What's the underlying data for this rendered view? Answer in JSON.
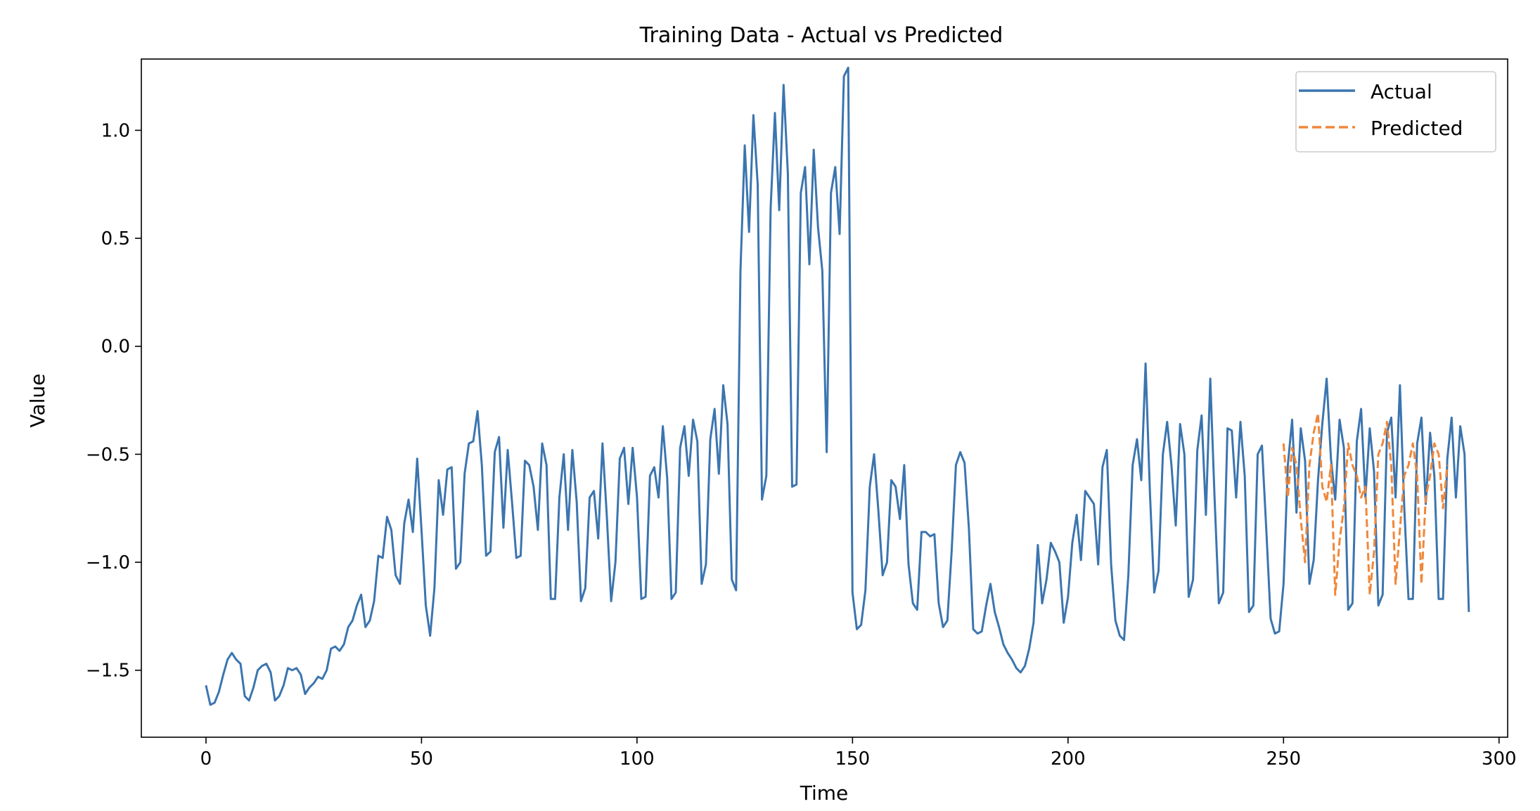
{
  "chart_data": {
    "type": "line",
    "title": "Training Data - Actual vs Predicted",
    "xlabel": "Time",
    "ylabel": "Value",
    "xlim": [
      -15,
      302
    ],
    "ylim": [
      -1.81,
      1.33
    ],
    "xticks": [
      0,
      50,
      100,
      150,
      200,
      250,
      300
    ],
    "xtick_labels": [
      "0",
      "50",
      "100",
      "150",
      "200",
      "250",
      "300"
    ],
    "yticks": [
      1.0,
      0.5,
      0.0,
      -0.5,
      -1.0,
      -1.5
    ],
    "ytick_labels": [
      "1.0",
      "0.5",
      "0.0",
      "−0.5",
      "−1.0",
      "−1.5"
    ],
    "grid": false,
    "legend": {
      "position": "top-right"
    },
    "series": [
      {
        "name": "Actual",
        "color": "#3b75af",
        "style": "solid",
        "x_start": 0,
        "values": [
          -1.57,
          -1.66,
          -1.65,
          -1.6,
          -1.52,
          -1.45,
          -1.42,
          -1.45,
          -1.47,
          -1.62,
          -1.64,
          -1.58,
          -1.5,
          -1.48,
          -1.47,
          -1.51,
          -1.64,
          -1.62,
          -1.57,
          -1.49,
          -1.5,
          -1.49,
          -1.52,
          -1.61,
          -1.58,
          -1.56,
          -1.53,
          -1.54,
          -1.5,
          -1.4,
          -1.39,
          -1.41,
          -1.38,
          -1.3,
          -1.27,
          -1.2,
          -1.15,
          -1.3,
          -1.27,
          -1.18,
          -0.97,
          -0.98,
          -0.79,
          -0.85,
          -1.06,
          -1.1,
          -0.82,
          -0.71,
          -0.86,
          -0.52,
          -0.85,
          -1.2,
          -1.34,
          -1.12,
          -0.62,
          -0.78,
          -0.57,
          -0.56,
          -1.03,
          -1.0,
          -0.59,
          -0.45,
          -0.44,
          -0.3,
          -0.55,
          -0.97,
          -0.95,
          -0.49,
          -0.42,
          -0.84,
          -0.48,
          -0.72,
          -0.98,
          -0.97,
          -0.53,
          -0.55,
          -0.65,
          -0.85,
          -0.45,
          -0.55,
          -1.17,
          -1.17,
          -0.7,
          -0.5,
          -0.85,
          -0.48,
          -0.72,
          -1.18,
          -1.12,
          -0.7,
          -0.67,
          -0.89,
          -0.45,
          -0.79,
          -1.18,
          -1.0,
          -0.52,
          -0.47,
          -0.73,
          -0.47,
          -0.7,
          -1.17,
          -1.16,
          -0.6,
          -0.56,
          -0.7,
          -0.37,
          -0.61,
          -1.17,
          -1.14,
          -0.47,
          -0.37,
          -0.6,
          -0.34,
          -0.44,
          -1.1,
          -1.01,
          -0.43,
          -0.29,
          -0.59,
          -0.18,
          -0.36,
          -1.08,
          -1.13,
          0.35,
          0.93,
          0.53,
          1.07,
          0.75,
          -0.71,
          -0.6,
          0.64,
          1.08,
          0.63,
          1.21,
          0.8,
          -0.65,
          -0.64,
          0.71,
          0.83,
          0.38,
          0.91,
          0.55,
          0.35,
          -0.49,
          0.71,
          0.83,
          0.52,
          1.25,
          1.29,
          -1.14,
          -1.31,
          -1.29,
          -1.13,
          -0.65,
          -0.5,
          -0.76,
          -1.06,
          -1.0,
          -0.62,
          -0.65,
          -0.8,
          -0.55,
          -1.01,
          -1.19,
          -1.22,
          -0.86,
          -0.86,
          -0.88,
          -0.87,
          -1.19,
          -1.3,
          -1.27,
          -0.95,
          -0.55,
          -0.49,
          -0.54,
          -0.84,
          -1.31,
          -1.33,
          -1.32,
          -1.2,
          -1.1,
          -1.23,
          -1.3,
          -1.38,
          -1.42,
          -1.45,
          -1.49,
          -1.51,
          -1.48,
          -1.4,
          -1.28,
          -0.92,
          -1.19,
          -1.08,
          -0.91,
          -0.95,
          -1.0,
          -1.28,
          -1.16,
          -0.91,
          -0.78,
          -0.99,
          -0.67,
          -0.7,
          -0.73,
          -1.01,
          -0.56,
          -0.48,
          -1.01,
          -1.27,
          -1.34,
          -1.36,
          -1.06,
          -0.55,
          -0.43,
          -0.62,
          -0.08,
          -0.68,
          -1.14,
          -1.04,
          -0.5,
          -0.35,
          -0.55,
          -0.83,
          -0.36,
          -0.5,
          -1.16,
          -1.08,
          -0.48,
          -0.32,
          -0.78,
          -0.15,
          -0.7,
          -1.19,
          -1.14,
          -0.38,
          -0.39,
          -0.7,
          -0.35,
          -0.6,
          -1.23,
          -1.2,
          -0.5,
          -0.46,
          -0.85,
          -1.26,
          -1.33,
          -1.32,
          -1.1,
          -0.55,
          -0.34,
          -0.77,
          -0.38,
          -0.53,
          -1.1,
          -0.99,
          -0.62,
          -0.36,
          -0.15,
          -0.52,
          -0.71,
          -0.34,
          -0.47,
          -1.22,
          -1.19,
          -0.44,
          -0.29,
          -0.7,
          -0.38,
          -0.58,
          -1.2,
          -1.15,
          -0.4,
          -0.33,
          -0.7,
          -0.18,
          -0.74,
          -1.17,
          -1.17,
          -0.45,
          -0.33,
          -0.73,
          -0.4,
          -0.6,
          -1.17,
          -1.17,
          -0.52,
          -0.33,
          -0.7,
          -0.37,
          -0.5,
          -1.23
        ]
      },
      {
        "name": "Predicted",
        "color": "#f0873a",
        "style": "dashed",
        "x_start": 250,
        "values": [
          -0.45,
          -0.7,
          -0.47,
          -0.55,
          -0.8,
          -1.0,
          -0.55,
          -0.4,
          -0.31,
          -0.65,
          -0.72,
          -0.55,
          -1.15,
          -0.9,
          -0.75,
          -0.45,
          -0.55,
          -0.6,
          -0.7,
          -0.65,
          -1.15,
          -0.95,
          -0.5,
          -0.45,
          -0.35,
          -0.55,
          -1.1,
          -0.85,
          -0.6,
          -0.55,
          -0.45,
          -0.6,
          -1.1,
          -0.7,
          -0.6,
          -0.45,
          -0.5,
          -0.75,
          -0.55
        ]
      }
    ]
  }
}
